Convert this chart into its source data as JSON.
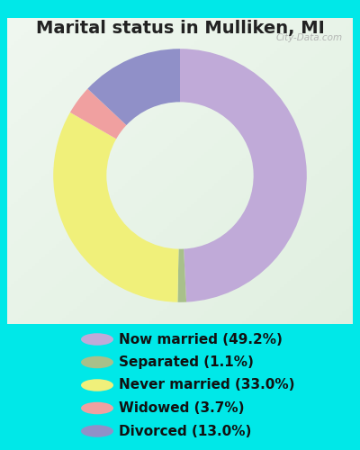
{
  "title": "Marital status in Mulliken, MI",
  "slices": [
    49.2,
    1.1,
    33.0,
    3.7,
    13.0
  ],
  "labels": [
    "Now married (49.2%)",
    "Separated (1.1%)",
    "Never married (33.0%)",
    "Widowed (3.7%)",
    "Divorced (13.0%)"
  ],
  "colors": [
    "#c0aad8",
    "#a8c08a",
    "#f0f07a",
    "#f0a0a0",
    "#9090c8"
  ],
  "bg_outer": "#00e8e8",
  "bg_inner_topleft": "#e8f4e8",
  "bg_inner_center": "#d0ecd8",
  "title_fontsize": 14,
  "legend_fontsize": 11,
  "watermark": "City-Data.com",
  "start_angle": 90
}
